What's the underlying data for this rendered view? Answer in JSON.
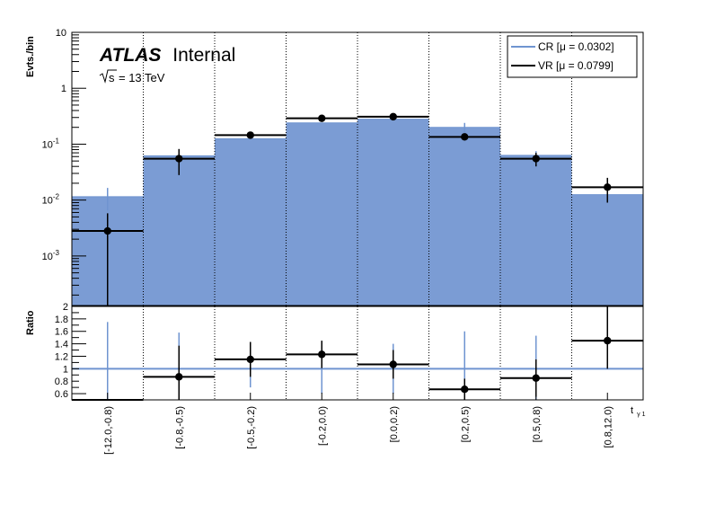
{
  "labels": {
    "brand": "ATLAS",
    "brand_suffix": "Internal",
    "energy_symbol": "s",
    "energy_value": "= 13 TeV"
  },
  "colors": {
    "cr_fill": "#7b9cd4",
    "cr_line": "#6f94d0",
    "vr_line": "#000000",
    "ratio_ref": "#6f94d0"
  },
  "chart_data": [
    {
      "type": "bar",
      "ylabel": "Evts./bin",
      "yscale": "log",
      "ylim": [
        0.00013,
        10
      ],
      "yticks": [
        {
          "value": 0.001,
          "base": "10",
          "exp": "-3"
        },
        {
          "value": 0.01,
          "base": "10",
          "exp": "-2"
        },
        {
          "value": 0.1,
          "base": "10",
          "exp": "-1"
        },
        {
          "value": 1,
          "base": "1",
          "exp": ""
        },
        {
          "value": 10,
          "base": "10",
          "exp": ""
        }
      ],
      "categories": [
        "[-12.0,-0.8)",
        "[-0.8,-0.5)",
        "[-0.5,-0.2)",
        "[-0.2,0.0)",
        "[0.0,0.2)",
        "[0.2,0.5)",
        "[0.5,0.8)",
        "[0.8,12.0)"
      ],
      "legend": {
        "position": "top-right"
      },
      "series": [
        {
          "name": "CR [μ = 0.0302]",
          "style": "filled-histogram",
          "values": [
            0.0115,
            0.062,
            0.125,
            0.24,
            0.28,
            0.2,
            0.063,
            0.0125
          ],
          "errors": [
            0.005,
            0,
            0,
            0,
            0,
            0.04,
            0.012,
            0
          ]
        },
        {
          "name": "VR [μ = 0.0799]",
          "style": "points-with-errors",
          "values": [
            0.0028,
            0.055,
            0.145,
            0.29,
            0.31,
            0.135,
            0.055,
            0.017
          ],
          "err_low": [
            0.0027,
            0.027,
            0.02,
            0.03,
            0.03,
            0.015,
            0.015,
            0.008
          ],
          "err_high": [
            0.003,
            0.027,
            0.02,
            0.03,
            0.03,
            0.015,
            0.015,
            0.008
          ]
        }
      ],
      "grid": {
        "vertical": "dotted",
        "horizontal": false
      }
    },
    {
      "type": "scatter",
      "ylabel": "Ratio",
      "xlabel_main": "t",
      "xlabel_sub": "γ 1",
      "ylim": [
        0.5,
        2.0
      ],
      "yticks": [
        0.6,
        0.8,
        1,
        1.2,
        1.4,
        1.6,
        1.8,
        2
      ],
      "ytick_labels": [
        "0.6",
        "0.8",
        "1",
        "1.2",
        "1.4",
        "1.6",
        "1.8",
        "2"
      ],
      "reference": 1.0,
      "series": [
        {
          "name": "ratio",
          "values": [
            0.5,
            0.87,
            1.15,
            1.23,
            1.07,
            0.67,
            0.85,
            1.45
          ],
          "err_low": [
            0.5,
            0.37,
            0.28,
            0.22,
            0.23,
            0.17,
            0.3,
            0.45
          ],
          "err_high": [
            0,
            0.5,
            0.28,
            0.22,
            0.23,
            0.17,
            0.3,
            0.55
          ]
        }
      ],
      "cr_errors": [
        0.75,
        0.58,
        0.3,
        0.4,
        0.4,
        0.6,
        0.53,
        0
      ]
    }
  ]
}
